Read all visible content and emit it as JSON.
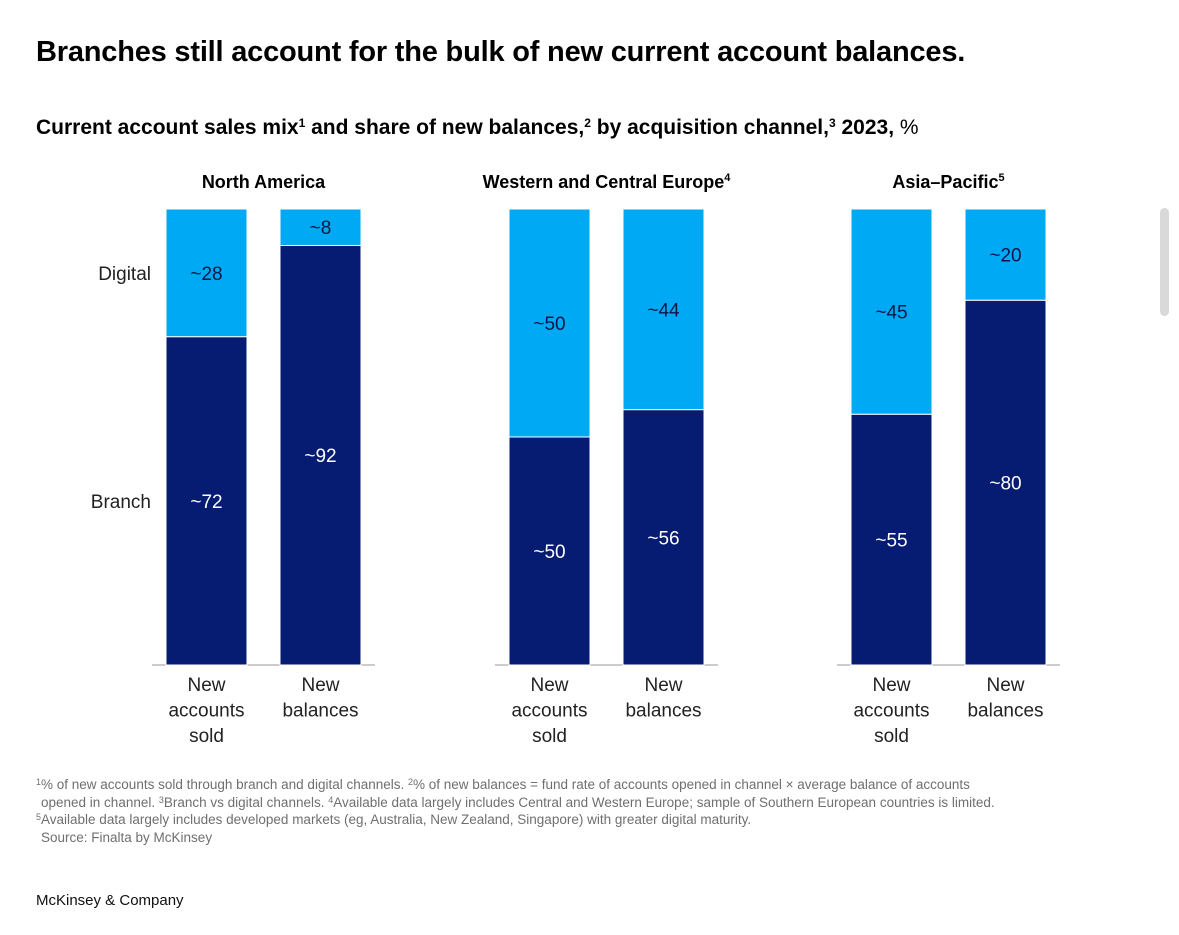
{
  "title": "Branches still account for the bulk of new current account balances.",
  "subtitle": {
    "part1": "Current account sales mix",
    "sup1": "1",
    "part2": " and share of new balances,",
    "sup2": "2",
    "part3": " by acquisition channel,",
    "sup3": "3",
    "part4": " 2023,",
    "unit": " %"
  },
  "chart_data": {
    "type": "bar",
    "stacked": true,
    "unit": "%",
    "category_axis_labels": [
      "Digital",
      "Branch"
    ],
    "categories": [
      "New accounts sold",
      "New balances"
    ],
    "ylim": [
      0,
      100
    ],
    "colors": {
      "Digital": "#00a9f4",
      "Branch": "#051c72"
    },
    "panels": [
      {
        "title": "North America",
        "footnote": "",
        "series": [
          {
            "name": "Branch",
            "values": [
              72,
              92
            ],
            "labels": [
              "~72",
              "~92"
            ]
          },
          {
            "name": "Digital",
            "values": [
              28,
              8
            ],
            "labels": [
              "~28",
              "~8"
            ]
          }
        ]
      },
      {
        "title": "Western and Central Europe",
        "footnote": "4",
        "series": [
          {
            "name": "Branch",
            "values": [
              50,
              56
            ],
            "labels": [
              "~50",
              "~56"
            ]
          },
          {
            "name": "Digital",
            "values": [
              50,
              44
            ],
            "labels": [
              "~50",
              "~44"
            ]
          }
        ]
      },
      {
        "title": "Asia–Pacific",
        "footnote": "5",
        "series": [
          {
            "name": "Branch",
            "values": [
              55,
              80
            ],
            "labels": [
              "~55",
              "~80"
            ]
          },
          {
            "name": "Digital",
            "values": [
              45,
              20
            ],
            "labels": [
              "~45",
              "~20"
            ]
          }
        ]
      }
    ]
  },
  "notes": {
    "n1_sup": "1",
    "n1": "% of new accounts sold through branch and digital channels. ",
    "n2_sup": "2",
    "n2a": "% of new balances = fund rate of accounts opened in channel × average balance of accounts",
    "n2b": "opened in channel. ",
    "n3_sup": "3",
    "n3": "Branch vs digital channels. ",
    "n4_sup": "4",
    "n4": "Available data largely includes Central and Western Europe; sample of Southern European countries is limited.",
    "n5_sup": "5",
    "n5": "Available data largely includes developed markets (eg, Australia, New Zealand, Singapore) with greater digital maturity.",
    "source": "Source: Finalta by McKinsey"
  },
  "brand": "McKinsey & Company"
}
